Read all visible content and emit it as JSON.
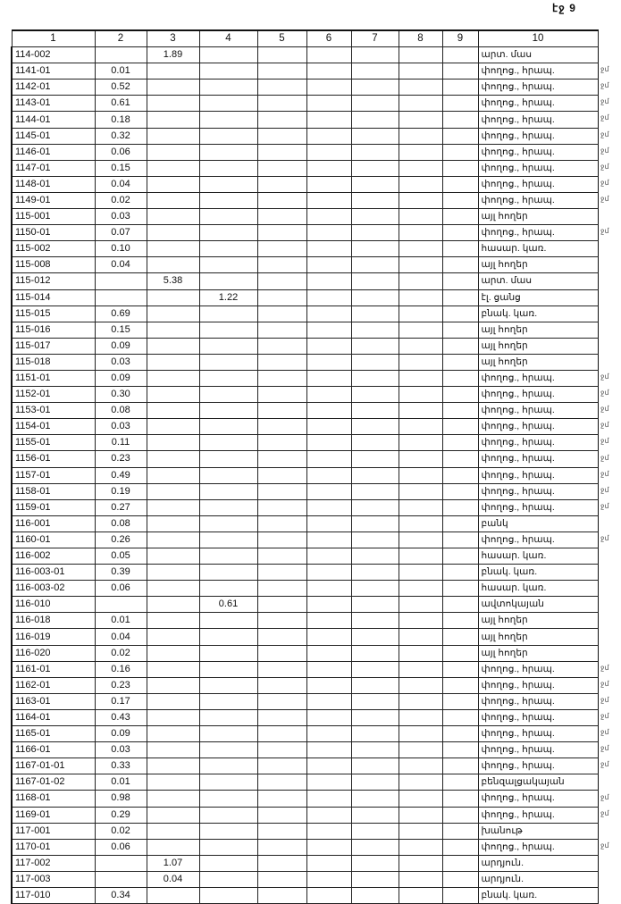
{
  "page_number": "էջ 9",
  "columns": [
    "1",
    "2",
    "3",
    "4",
    "5",
    "6",
    "7",
    "8",
    "9",
    "10"
  ],
  "side_mark": "ջմ",
  "rows": [
    [
      "114-002",
      "",
      "1.89",
      "",
      "արտ. մաս",
      0
    ],
    [
      "1141-01",
      "0.01",
      "",
      "",
      "փողոց., հրապ.",
      1
    ],
    [
      "1142-01",
      "0.52",
      "",
      "",
      "փողոց., հրապ.",
      1
    ],
    [
      "1143-01",
      "0.61",
      "",
      "",
      "փողոց., հրապ.",
      1
    ],
    [
      "1144-01",
      "0.18",
      "",
      "",
      "փողոց., հրապ.",
      1
    ],
    [
      "1145-01",
      "0.32",
      "",
      "",
      "փողոց., հրապ.",
      1
    ],
    [
      "1146-01",
      "0.06",
      "",
      "",
      "փողոց., հրապ.",
      1
    ],
    [
      "1147-01",
      "0.15",
      "",
      "",
      "փողոց., հրապ.",
      1
    ],
    [
      "1148-01",
      "0.04",
      "",
      "",
      "փողոց., հրապ.",
      1
    ],
    [
      "1149-01",
      "0.02",
      "",
      "",
      "փողոց., հրապ.",
      1
    ],
    [
      "115-001",
      "0.03",
      "",
      "",
      "այլ հողեր",
      0
    ],
    [
      "1150-01",
      "0.07",
      "",
      "",
      "փողոց., հրապ.",
      1
    ],
    [
      "115-002",
      "0.10",
      "",
      "",
      "հասար. կառ.",
      0
    ],
    [
      "115-008",
      "0.04",
      "",
      "",
      "այլ հողեր",
      0
    ],
    [
      "115-012",
      "",
      "5.38",
      "",
      "արտ. մաս",
      0
    ],
    [
      "115-014",
      "",
      "",
      "1.22",
      "էլ. ցանց",
      0
    ],
    [
      "115-015",
      "0.69",
      "",
      "",
      "բնակ. կառ.",
      0
    ],
    [
      "115-016",
      "0.15",
      "",
      "",
      "այլ հողեր",
      0
    ],
    [
      "115-017",
      "0.09",
      "",
      "",
      "այլ հողեր",
      0
    ],
    [
      "115-018",
      "0.03",
      "",
      "",
      "այլ հողեր",
      0
    ],
    [
      "1151-01",
      "0.09",
      "",
      "",
      "փողոց., հրապ.",
      1
    ],
    [
      "1152-01",
      "0.30",
      "",
      "",
      "փողոց., հրապ.",
      1
    ],
    [
      "1153-01",
      "0.08",
      "",
      "",
      "փողոց., հրապ.",
      1
    ],
    [
      "1154-01",
      "0.03",
      "",
      "",
      "փողոց., հրապ.",
      1
    ],
    [
      "1155-01",
      "0.11",
      "",
      "",
      "փողոց., հրապ.",
      1
    ],
    [
      "1156-01",
      "0.23",
      "",
      "",
      "փողոց., հրապ.",
      1
    ],
    [
      "1157-01",
      "0.49",
      "",
      "",
      "փողոց., հրապ.",
      1
    ],
    [
      "1158-01",
      "0.19",
      "",
      "",
      "փողոց., հրապ.",
      1
    ],
    [
      "1159-01",
      "0.27",
      "",
      "",
      "փողոց., հրապ.",
      1
    ],
    [
      "116-001",
      "0.08",
      "",
      "",
      "բանկ",
      0
    ],
    [
      "1160-01",
      "0.26",
      "",
      "",
      "փողոց., հրապ.",
      1
    ],
    [
      "116-002",
      "0.05",
      "",
      "",
      "հասար. կառ.",
      0
    ],
    [
      "116-003-01",
      "0.39",
      "",
      "",
      "բնակ. կառ.",
      0
    ],
    [
      "116-003-02",
      "0.06",
      "",
      "",
      "հասար. կառ.",
      0
    ],
    [
      "116-010",
      "",
      "",
      "0.61",
      "ավտոկայան",
      0
    ],
    [
      "116-018",
      "0.01",
      "",
      "",
      "այլ հողեր",
      0
    ],
    [
      "116-019",
      "0.04",
      "",
      "",
      "այլ հողեր",
      0
    ],
    [
      "116-020",
      "0.02",
      "",
      "",
      "այլ հողեր",
      0
    ],
    [
      "1161-01",
      "0.16",
      "",
      "",
      "փողոց., հրապ.",
      1
    ],
    [
      "1162-01",
      "0.23",
      "",
      "",
      "փողոց., հրապ.",
      1
    ],
    [
      "1163-01",
      "0.17",
      "",
      "",
      "փողոց., հրապ.",
      1
    ],
    [
      "1164-01",
      "0.43",
      "",
      "",
      "փողոց., հրապ.",
      1
    ],
    [
      "1165-01",
      "0.09",
      "",
      "",
      "փողոց., հրապ.",
      1
    ],
    [
      "1166-01",
      "0.03",
      "",
      "",
      "փողոց., հրապ.",
      1
    ],
    [
      "1167-01-01",
      "0.33",
      "",
      "",
      "փողոց., հրապ.",
      1
    ],
    [
      "1167-01-02",
      "0.01",
      "",
      "",
      "բենզալցակայան",
      0
    ],
    [
      "1168-01",
      "0.98",
      "",
      "",
      "փողոց., հրապ.",
      1
    ],
    [
      "1169-01",
      "0.29",
      "",
      "",
      "փողոց., հրապ.",
      1
    ],
    [
      "117-001",
      "0.02",
      "",
      "",
      "խանութ",
      0
    ],
    [
      "1170-01",
      "0.06",
      "",
      "",
      "փողոց., հրապ.",
      1
    ],
    [
      "117-002",
      "",
      "1.07",
      "",
      "արդյուն.",
      0
    ],
    [
      "117-003",
      "",
      "0.04",
      "",
      "արդյուն.",
      0
    ],
    [
      "117-010",
      "0.34",
      "",
      "",
      "բնակ. կառ.",
      0
    ]
  ]
}
